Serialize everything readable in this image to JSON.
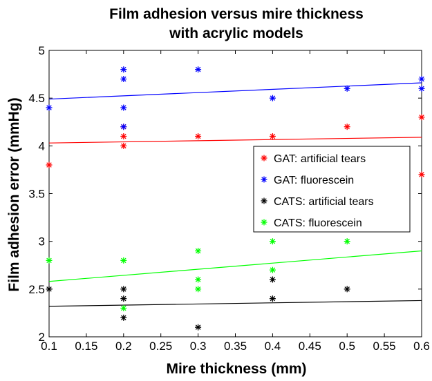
{
  "chart_data": {
    "type": "scatter",
    "title_lines": [
      "Film adhesion versus mire thickness",
      "with acrylic models"
    ],
    "xlabel": "Mire thickness (mm)",
    "ylabel": "Film adhesion error (mmHg)",
    "xlim": [
      0.1,
      0.6
    ],
    "ylim": [
      2,
      5
    ],
    "xticks": [
      "0.1",
      "0.15",
      "0.2",
      "0.25",
      "0.3",
      "0.35",
      "0.4",
      "0.45",
      "0.5",
      "0.55",
      "0.6"
    ],
    "yticks": [
      "2",
      "2.5",
      "3",
      "3.5",
      "4",
      "4.5",
      "5"
    ],
    "grid": false,
    "legend_position": "right",
    "series": [
      {
        "name": "GAT: artificial tears",
        "color": "#ff0000",
        "points": [
          [
            0.1,
            3.8
          ],
          [
            0.2,
            4.0
          ],
          [
            0.2,
            4.1
          ],
          [
            0.2,
            4.2
          ],
          [
            0.3,
            4.1
          ],
          [
            0.4,
            4.1
          ],
          [
            0.5,
            4.2
          ],
          [
            0.6,
            4.3
          ],
          [
            0.6,
            3.7
          ]
        ],
        "trend": [
          [
            0.1,
            4.03
          ],
          [
            0.6,
            4.09
          ]
        ]
      },
      {
        "name": "GAT: fluorescein",
        "color": "#0000ff",
        "points": [
          [
            0.1,
            4.4
          ],
          [
            0.2,
            4.8
          ],
          [
            0.2,
            4.7
          ],
          [
            0.2,
            4.4
          ],
          [
            0.2,
            4.2
          ],
          [
            0.3,
            4.8
          ],
          [
            0.4,
            4.5
          ],
          [
            0.5,
            4.6
          ],
          [
            0.6,
            4.7
          ],
          [
            0.6,
            4.6
          ]
        ],
        "trend": [
          [
            0.1,
            4.49
          ],
          [
            0.6,
            4.66
          ]
        ]
      },
      {
        "name": "CATS: artificial tears",
        "color": "#000000",
        "points": [
          [
            0.1,
            2.5
          ],
          [
            0.2,
            2.5
          ],
          [
            0.2,
            2.4
          ],
          [
            0.2,
            2.2
          ],
          [
            0.3,
            2.1
          ],
          [
            0.4,
            2.6
          ],
          [
            0.4,
            2.4
          ],
          [
            0.5,
            2.5
          ]
        ],
        "trend": [
          [
            0.1,
            2.32
          ],
          [
            0.6,
            2.38
          ]
        ]
      },
      {
        "name": "CATS: fluorescein",
        "color": "#00ff00",
        "points": [
          [
            0.1,
            2.8
          ],
          [
            0.2,
            2.8
          ],
          [
            0.2,
            2.3
          ],
          [
            0.3,
            2.9
          ],
          [
            0.3,
            2.6
          ],
          [
            0.3,
            2.5
          ],
          [
            0.4,
            3.0
          ],
          [
            0.4,
            2.7
          ],
          [
            0.5,
            3.0
          ]
        ],
        "trend": [
          [
            0.1,
            2.58
          ],
          [
            0.6,
            2.9
          ]
        ]
      }
    ]
  }
}
